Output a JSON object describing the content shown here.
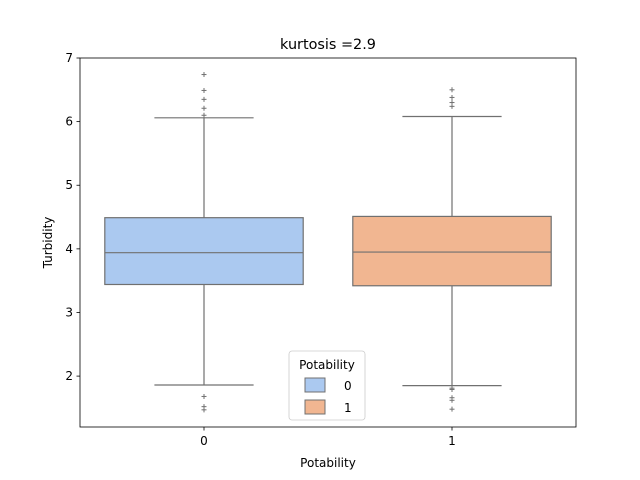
{
  "chart_data": {
    "type": "box",
    "title": "kurtosis =2.9",
    "xlabel": "Potability",
    "ylabel": "Turbidity",
    "ylim": [
      1.2,
      7.0
    ],
    "yticks": [
      "2",
      "3",
      "4",
      "5",
      "6",
      "7"
    ],
    "categories": [
      "0",
      "1"
    ],
    "grid": false,
    "legend": {
      "title": "Potability",
      "placement": "lower-center",
      "entries": [
        "0",
        "1"
      ]
    },
    "series": [
      {
        "name": "0",
        "color": "#abc9f0",
        "whisker_low": 1.86,
        "q1": 3.44,
        "median": 3.94,
        "q3": 4.49,
        "whisker_high": 6.06,
        "outliers": [
          6.74,
          6.49,
          6.35,
          6.21,
          6.1,
          1.68,
          1.52,
          1.47
        ]
      },
      {
        "name": "1",
        "color": "#f1b691",
        "whisker_low": 1.85,
        "q1": 3.42,
        "median": 3.95,
        "q3": 4.51,
        "whisker_high": 6.08,
        "outliers": [
          6.5,
          6.38,
          6.3,
          6.24,
          1.81,
          1.79,
          1.66,
          1.62,
          1.48
        ]
      }
    ]
  }
}
